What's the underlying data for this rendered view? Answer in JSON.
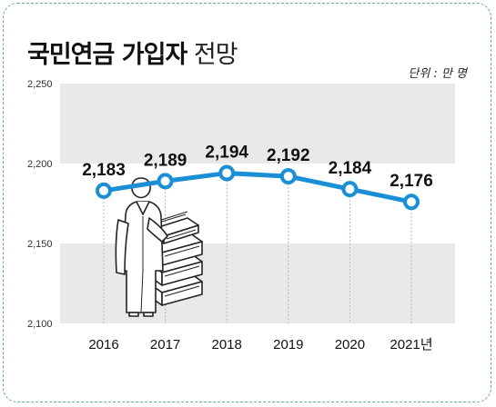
{
  "title": {
    "bold": "국민연금 가입자",
    "light": "전망"
  },
  "unit": "단위 : 만 명",
  "icon": "person-with-money-stacks-icon",
  "colors": {
    "line": "#1b8fd6",
    "band": "#e9e9e9",
    "frame": "#6fa98f"
  },
  "chart_data": {
    "type": "line",
    "title": "국민연금 가입자 전망",
    "ylabel": "단위 : 만 명",
    "xlabel": "",
    "categories": [
      "2016",
      "2017",
      "2018",
      "2019",
      "2020",
      "2021년"
    ],
    "series": [
      {
        "values": [
          2183,
          2189,
          2194,
          2192,
          2184,
          2176
        ]
      }
    ],
    "value_labels": [
      "2,183",
      "2,189",
      "2,194",
      "2,192",
      "2,184",
      "2,176"
    ],
    "ylim": [
      2100,
      2250
    ],
    "yticks": [
      2100,
      2150,
      2200,
      2250
    ],
    "ytick_labels": [
      "2,100",
      "2,150",
      "2,200",
      "2,250"
    ],
    "grid": "alternating horizontal bands",
    "legend": "none"
  }
}
